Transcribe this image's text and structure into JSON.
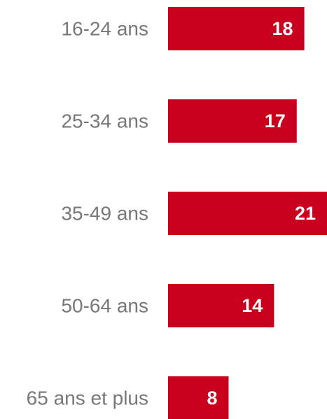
{
  "chart_data": {
    "type": "barh",
    "categories": [
      "16-24 ans",
      "25-34 ans",
      "35-49 ans",
      "50-64 ans",
      "65 ans et plus"
    ],
    "values": [
      18,
      17,
      21,
      14,
      8
    ],
    "color": "#c8001e"
  }
}
